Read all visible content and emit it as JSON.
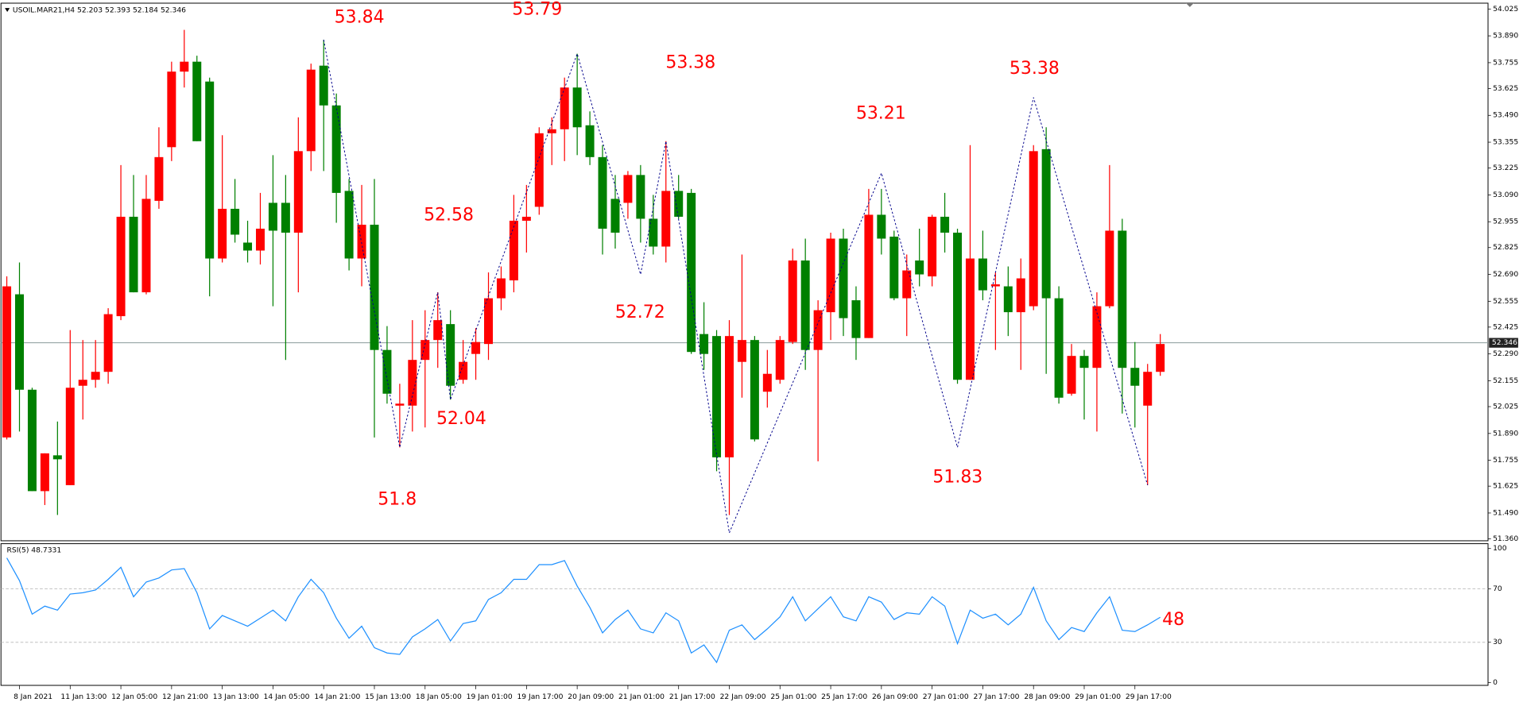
{
  "chart_data": [
    {
      "type": "candlestick",
      "symbol": "USOIL.MAR21,H4",
      "ohlc": [
        52.203,
        52.393,
        52.184,
        52.346
      ],
      "up_color": "#ff0000",
      "down_color": "#008000",
      "categories": [
        null,
        "8 Jan 2021",
        null,
        null,
        null,
        "11 Jan 13:00",
        null,
        null,
        null,
        "12 Jan 05:00",
        null,
        null,
        null,
        "12 Jan 21:00",
        null,
        null,
        null,
        "13 Jan 13:00",
        null,
        null,
        null,
        "14 Jan 05:00",
        null,
        null,
        null,
        "14 Jan 21:00",
        null,
        null,
        null,
        "15 Jan 13:00",
        null,
        null,
        null,
        "18 Jan 05:00",
        null,
        null,
        null,
        "19 Jan 01:00",
        null,
        null,
        null,
        "19 Jan 17:00",
        null,
        null,
        null,
        "20 Jan 09:00",
        null,
        null,
        null,
        "21 Jan 01:00",
        null,
        null,
        null,
        "21 Jan 17:00",
        null,
        null,
        null,
        "22 Jan 09:00",
        null,
        null,
        null,
        "25 Jan 01:00",
        null,
        null,
        null,
        "25 Jan 17:00",
        null,
        null,
        null,
        "26 Jan 09:00",
        null,
        null,
        null,
        "27 Jan 01:00",
        null,
        null,
        null,
        "27 Jan 17:00",
        null,
        null,
        null,
        "28 Jan 09:00",
        null,
        null,
        null,
        "29 Jan 01:00",
        null,
        null,
        null,
        "29 Jan 17:00",
        null,
        null
      ],
      "open": [
        51.87,
        52.59,
        52.11,
        51.6,
        51.78,
        51.63,
        52.13,
        52.16,
        52.2,
        52.48,
        52.98,
        52.6,
        53.06,
        53.33,
        53.71,
        53.76,
        53.66,
        52.77,
        53.02,
        52.85,
        52.81,
        53.05,
        53.05,
        52.9,
        53.31,
        53.74,
        53.54,
        53.11,
        52.77,
        52.94,
        52.31,
        52.03,
        52.03,
        52.26,
        52.36,
        52.44,
        52.16,
        52.29,
        52.34,
        52.57,
        52.66,
        52.96,
        53.03,
        53.4,
        53.42,
        53.63,
        53.44,
        53.28,
        53.07,
        53.05,
        53.19,
        52.97,
        52.83,
        53.11,
        53.1,
        52.39,
        52.38,
        51.77,
        52.25,
        52.36,
        52.1,
        52.16,
        52.35,
        52.76,
        52.31,
        52.5,
        52.87,
        52.56,
        52.37,
        52.99,
        52.88,
        52.57,
        52.76,
        52.68,
        52.98,
        52.9,
        52.16,
        52.77,
        52.63,
        52.63,
        52.5,
        52.53,
        53.32,
        52.57,
        52.09,
        52.28,
        52.22,
        52.53,
        52.91,
        52.22,
        52.03,
        52.2
      ],
      "high": [
        52.68,
        52.75,
        52.12,
        51.79,
        51.95,
        52.41,
        52.36,
        52.36,
        52.52,
        53.24,
        53.19,
        53.19,
        53.43,
        53.76,
        53.92,
        53.79,
        53.68,
        53.39,
        53.17,
        52.96,
        53.1,
        53.29,
        53.19,
        53.48,
        53.75,
        53.87,
        53.6,
        53.17,
        53.14,
        53.17,
        52.43,
        52.14,
        52.46,
        52.51,
        52.6,
        52.51,
        52.36,
        52.42,
        52.7,
        52.73,
        53.09,
        53.14,
        53.43,
        53.48,
        53.68,
        53.8,
        53.51,
        53.34,
        53.19,
        53.21,
        53.24,
        53.09,
        53.36,
        53.19,
        53.12,
        52.55,
        52.41,
        52.46,
        52.79,
        52.38,
        52.31,
        52.38,
        52.82,
        52.87,
        52.56,
        52.9,
        52.92,
        52.63,
        53.12,
        53.12,
        52.91,
        52.79,
        52.92,
        52.99,
        53.1,
        52.92,
        53.34,
        52.91,
        52.7,
        52.73,
        52.77,
        53.34,
        53.43,
        52.63,
        52.34,
        52.31,
        52.6,
        53.24,
        52.97,
        52.35,
        52.24,
        52.39
      ],
      "low": [
        51.86,
        51.9,
        51.6,
        51.53,
        51.48,
        51.63,
        51.96,
        52.12,
        52.14,
        52.46,
        52.6,
        52.59,
        53.02,
        53.26,
        53.63,
        53.36,
        52.58,
        52.75,
        52.85,
        52.75,
        52.74,
        52.53,
        52.26,
        52.6,
        53.21,
        53.21,
        52.95,
        52.71,
        52.63,
        51.87,
        52.04,
        51.82,
        51.9,
        51.92,
        52.22,
        52.06,
        52.14,
        52.16,
        52.26,
        52.51,
        52.6,
        52.8,
        52.99,
        53.24,
        53.26,
        53.29,
        53.24,
        52.79,
        52.82,
        52.97,
        52.85,
        52.79,
        52.75,
        52.97,
        52.29,
        52.21,
        51.7,
        51.48,
        52.07,
        51.85,
        52.02,
        52.14,
        52.34,
        52.21,
        51.75,
        52.36,
        52.38,
        52.26,
        52.37,
        52.79,
        52.56,
        52.38,
        52.63,
        52.63,
        52.8,
        52.14,
        52.16,
        52.56,
        52.31,
        52.38,
        52.21,
        52.51,
        52.19,
        52.04,
        52.08,
        51.96,
        51.9,
        52.52,
        51.99,
        51.92,
        51.63,
        52.18
      ],
      "close": [
        52.63,
        52.11,
        51.6,
        51.79,
        51.76,
        52.12,
        52.16,
        52.2,
        52.49,
        52.98,
        52.6,
        53.07,
        53.28,
        53.71,
        53.76,
        53.36,
        52.77,
        53.02,
        52.89,
        52.81,
        52.92,
        52.91,
        52.9,
        53.31,
        53.72,
        53.54,
        53.1,
        52.77,
        52.94,
        52.31,
        52.09,
        52.04,
        52.26,
        52.36,
        52.46,
        52.13,
        52.25,
        52.35,
        52.57,
        52.67,
        52.96,
        52.98,
        53.4,
        53.42,
        53.63,
        53.43,
        53.28,
        52.92,
        52.9,
        53.19,
        52.97,
        52.83,
        53.11,
        52.98,
        52.3,
        52.29,
        51.77,
        52.38,
        52.36,
        51.86,
        52.19,
        52.36,
        52.76,
        52.31,
        52.51,
        52.87,
        52.47,
        52.37,
        52.99,
        52.87,
        52.57,
        52.71,
        52.69,
        52.98,
        52.9,
        52.16,
        52.77,
        52.61,
        52.64,
        52.5,
        52.67,
        53.31,
        52.57,
        52.07,
        52.28,
        52.22,
        52.53,
        52.91,
        52.22,
        52.13,
        52.2,
        52.34
      ],
      "ylim": [
        51.36,
        54.025
      ],
      "yticks": [
        {
          "value": 51.36,
          "label": "51.360"
        },
        {
          "value": 51.49,
          "label": "51.490"
        },
        51.625,
        51.755,
        {
          "value": 51.89,
          "label": "51.890"
        },
        52.025,
        52.155,
        {
          "value": 52.29,
          "label": "52.290"
        },
        52.425,
        52.555,
        {
          "value": 52.69,
          "label": "52.690"
        },
        52.825,
        52.955,
        {
          "value": 53.09,
          "label": "53.090"
        },
        53.225,
        53.355,
        {
          "value": 53.49,
          "label": "53.490"
        },
        53.625,
        53.755,
        {
          "value": 53.89,
          "label": "53.890"
        },
        54.025
      ],
      "last": 52.346,
      "zigzag": {
        "color": "#00008b",
        "values": [
          53.87,
          51.82,
          52.6,
          52.06,
          53.8,
          52.69,
          53.36,
          51.39,
          53.2,
          51.82,
          53.58,
          51.63
        ]
      },
      "annotations": [
        53.84,
        53.79,
        53.38,
        53.21,
        53.38,
        52.58,
        52.72,
        52.04,
        51.8,
        51.83
      ],
      "annotation_color": "#ff0000"
    },
    {
      "type": "line",
      "title": "RSI(5) 48.7331",
      "color": "#1e90ff",
      "values": [
        93,
        76,
        51,
        57,
        54,
        66,
        67,
        69,
        77,
        86,
        64,
        75,
        78,
        84,
        85,
        67,
        40,
        50,
        46,
        42,
        48,
        54,
        46,
        64,
        77,
        67,
        48,
        33,
        42,
        26,
        22,
        21,
        34,
        40,
        47,
        31,
        44,
        46,
        62,
        67,
        77,
        77,
        88,
        88,
        91,
        72,
        56,
        37,
        47,
        54,
        40,
        37,
        52,
        46,
        22,
        28,
        15,
        39,
        43,
        32,
        40,
        49,
        64,
        46,
        55,
        64,
        49,
        46,
        64,
        60,
        47,
        52,
        51,
        64,
        57,
        29,
        54,
        48,
        51,
        43,
        51,
        71,
        46,
        32,
        41,
        38,
        52,
        64,
        39,
        38,
        43,
        48.7
      ],
      "ylim": [
        0,
        100
      ],
      "yticks": [
        0,
        30,
        70,
        100
      ],
      "annotation": 48,
      "annotation_color": "#ff0000"
    }
  ]
}
